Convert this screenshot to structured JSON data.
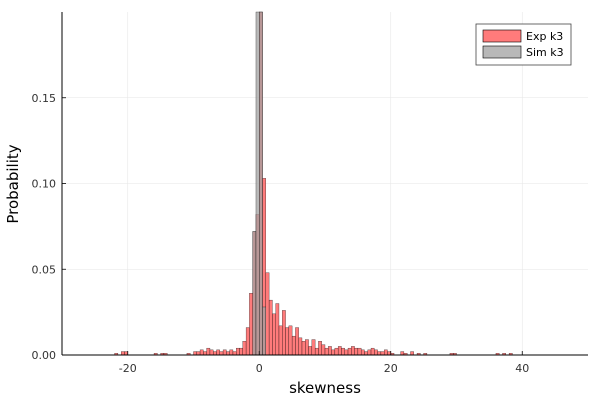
{
  "chart_data": {
    "type": "bar",
    "xlabel": "skewness",
    "ylabel": "Probability",
    "xlim": [
      -30,
      50
    ],
    "ylim": [
      0,
      0.2
    ],
    "bin_width": 0.5,
    "grid": true,
    "legend_position": "top-right",
    "xticks": [
      -20,
      0,
      20,
      40
    ],
    "xtick_labels": [
      "-20",
      "0",
      "20",
      "40"
    ],
    "yticks": [
      0.0,
      0.05,
      0.1,
      0.15
    ],
    "ytick_labels": [
      "0.00",
      "0.05",
      "0.10",
      "0.15"
    ],
    "series": [
      {
        "name": "Exp k3",
        "color": "#ff5a5a",
        "opacity": 0.8,
        "bins": [
          [
            -22.0,
            0.001
          ],
          [
            -21.0,
            0.002
          ],
          [
            -20.5,
            0.002
          ],
          [
            -16.0,
            0.001
          ],
          [
            -15.0,
            0.001
          ],
          [
            -14.5,
            0.001
          ],
          [
            -11.0,
            0.001
          ],
          [
            -10.0,
            0.002
          ],
          [
            -9.5,
            0.002
          ],
          [
            -9.0,
            0.003
          ],
          [
            -8.5,
            0.002
          ],
          [
            -8.0,
            0.004
          ],
          [
            -7.5,
            0.003
          ],
          [
            -7.0,
            0.002
          ],
          [
            -6.5,
            0.003
          ],
          [
            -6.0,
            0.002
          ],
          [
            -5.5,
            0.003
          ],
          [
            -5.0,
            0.002
          ],
          [
            -4.5,
            0.003
          ],
          [
            -4.0,
            0.002
          ],
          [
            -3.5,
            0.004
          ],
          [
            -3.0,
            0.004
          ],
          [
            -2.5,
            0.008
          ],
          [
            -2.0,
            0.016
          ],
          [
            -1.5,
            0.036
          ],
          [
            -1.0,
            0.072
          ],
          [
            -0.5,
            0.082
          ],
          [
            0.0,
            0.2
          ],
          [
            0.5,
            0.103
          ],
          [
            1.0,
            0.048
          ],
          [
            1.5,
            0.032
          ],
          [
            2.0,
            0.024
          ],
          [
            2.5,
            0.03
          ],
          [
            3.0,
            0.017
          ],
          [
            3.5,
            0.026
          ],
          [
            4.0,
            0.016
          ],
          [
            4.5,
            0.017
          ],
          [
            5.0,
            0.011
          ],
          [
            5.5,
            0.016
          ],
          [
            6.0,
            0.01
          ],
          [
            6.5,
            0.008
          ],
          [
            7.0,
            0.009
          ],
          [
            7.5,
            0.005
          ],
          [
            8.0,
            0.009
          ],
          [
            8.5,
            0.004
          ],
          [
            9.0,
            0.008
          ],
          [
            9.5,
            0.006
          ],
          [
            10.0,
            0.004
          ],
          [
            10.5,
            0.005
          ],
          [
            11.0,
            0.003
          ],
          [
            11.5,
            0.004
          ],
          [
            12.0,
            0.005
          ],
          [
            12.5,
            0.004
          ],
          [
            13.0,
            0.003
          ],
          [
            13.5,
            0.004
          ],
          [
            14.0,
            0.005
          ],
          [
            14.5,
            0.004
          ],
          [
            15.0,
            0.004
          ],
          [
            15.5,
            0.003
          ],
          [
            16.0,
            0.002
          ],
          [
            16.5,
            0.003
          ],
          [
            17.0,
            0.004
          ],
          [
            17.5,
            0.003
          ],
          [
            18.0,
            0.002
          ],
          [
            18.5,
            0.002
          ],
          [
            19.0,
            0.003
          ],
          [
            19.5,
            0.002
          ],
          [
            20.0,
            0.001
          ],
          [
            21.5,
            0.002
          ],
          [
            22.0,
            0.001
          ],
          [
            23.0,
            0.002
          ],
          [
            24.0,
            0.001
          ],
          [
            25.0,
            0.001
          ],
          [
            29.0,
            0.001
          ],
          [
            29.5,
            0.001
          ],
          [
            36.0,
            0.001
          ],
          [
            37.0,
            0.001
          ],
          [
            38.0,
            0.001
          ]
        ]
      },
      {
        "name": "Sim k3",
        "color": "#a0a0a0",
        "opacity": 0.75,
        "bins": [
          [
            -1.0,
            0.072
          ],
          [
            -0.5,
            0.2
          ],
          [
            0.0,
            0.2
          ],
          [
            0.5,
            0.028
          ]
        ]
      }
    ]
  }
}
